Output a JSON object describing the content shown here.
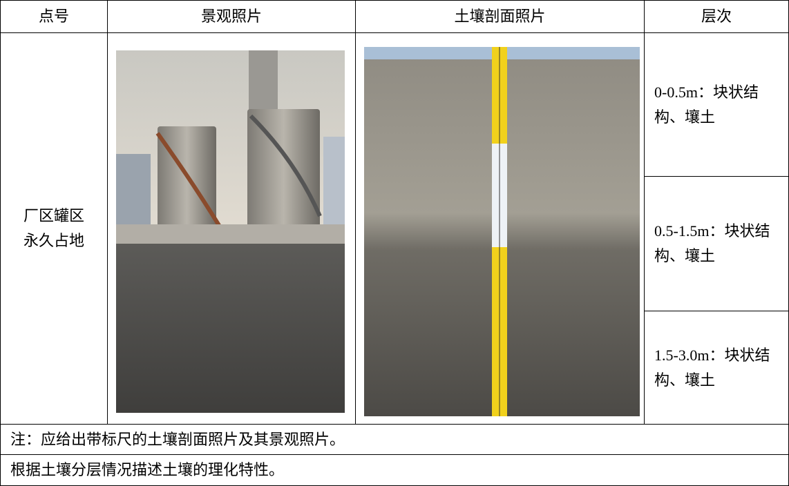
{
  "header": [
    "点号",
    "景观照片",
    "土壤剖面照片",
    "层次"
  ],
  "point": [
    "厂区罐区",
    "永久占地"
  ],
  "layers": [
    "0-0.5m：块状结构、壤土",
    "0.5-1.5m：块状结构、壤土",
    "1.5-3.0m：块状结构、壤土"
  ],
  "note": "注：应给出带标尺的土壤剖面照片及其景观照片。",
  "description": "根据土壤分层情况描述土壤的理化特性。"
}
